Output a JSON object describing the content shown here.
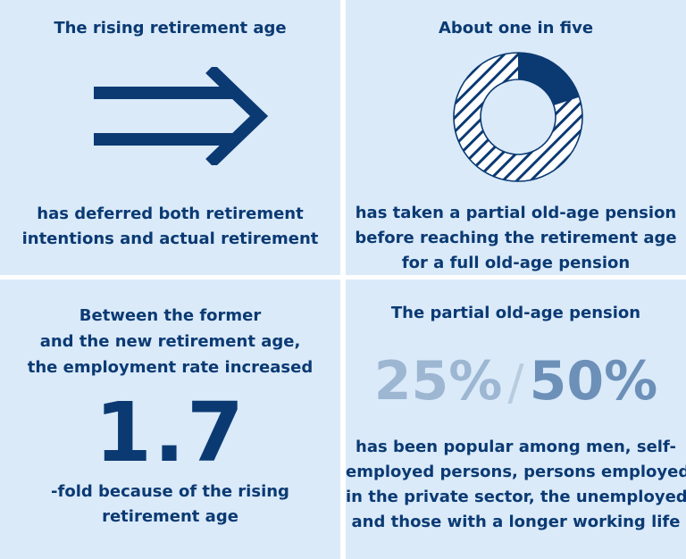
{
  "panels": {
    "rising_age": {
      "title": "The rising retirement age",
      "body": [
        "has deferred both retirement",
        "intentions and actual retirement"
      ],
      "icon": "right-arrow-icon"
    },
    "one_in_five": {
      "title": "About one in five",
      "body": [
        "has taken a partial old-age pension",
        "before reaching the retirement age",
        "for a full old-age pension"
      ],
      "icon": "donut-chart-icon",
      "share": 0.2
    },
    "employment": {
      "title": [
        "Between the former",
        "and the new retirement age,",
        "the employment rate increased"
      ],
      "number": "1.7",
      "body": [
        "-fold because of the rising",
        "retirement age"
      ]
    },
    "partial_pension": {
      "title": "The partial old-age pension",
      "pct_left": "25%",
      "separator": "/",
      "pct_right": "50%",
      "body": [
        "has been popular among men, self-",
        "employed persons, persons employed",
        "in the private sector, the unemployed",
        "and those with a longer working life"
      ]
    }
  },
  "colors": {
    "panel_bg": "#daeaf9",
    "text": "#0b3a73",
    "pct_left": "#9db6d2",
    "pct_right": "#6c90b8"
  }
}
